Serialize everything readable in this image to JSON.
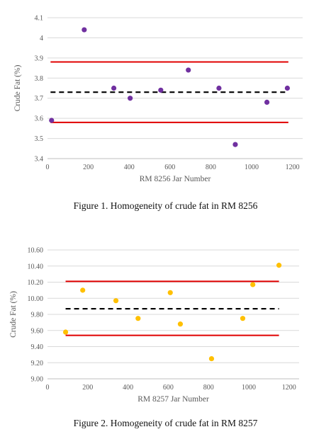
{
  "chart_data": [
    {
      "type": "scatter",
      "caption": "Figure 1. Homogeneity of crude fat in RM 8256",
      "xlabel": "RM 8256 Jar Number",
      "ylabel": "Crude Fat (%)",
      "xlim": [
        0,
        1250
      ],
      "ylim": [
        3.4,
        4.1
      ],
      "xticks": [
        0,
        200,
        400,
        600,
        800,
        1000,
        1200
      ],
      "xtick_labels": [
        "0",
        "200",
        "400",
        "600",
        "800",
        "1000",
        "1200"
      ],
      "yticks": [
        3.4,
        3.5,
        3.6,
        3.7,
        3.8,
        3.9,
        4.0,
        4.1
      ],
      "ytick_labels": [
        "3.4",
        "3.5",
        "3.6",
        "3.7",
        "3.8",
        "3.9",
        "4",
        "4.1"
      ],
      "grid": "horizontal",
      "point_color": "#7030a0",
      "series": [
        {
          "x": [
            20,
            180,
            325,
            405,
            555,
            690,
            840,
            920,
            1075,
            1175
          ],
          "y": [
            3.59,
            4.04,
            3.75,
            3.7,
            3.74,
            3.84,
            3.75,
            3.47,
            3.68,
            3.75
          ]
        }
      ],
      "reference_lines": [
        {
          "style": "solid",
          "color": "#e00000",
          "value": 3.88,
          "x_range": [
            15,
            1180
          ]
        },
        {
          "style": "dashed",
          "color": "#000000",
          "value": 3.73,
          "x_range": [
            15,
            1180
          ]
        },
        {
          "style": "solid",
          "color": "#e00000",
          "value": 3.58,
          "x_range": [
            15,
            1180
          ]
        }
      ]
    },
    {
      "type": "scatter",
      "caption": "Figure 2. Homogeneity of crude fat in RM 8257",
      "xlabel": "RM 8257 Jar Number",
      "ylabel": "Crude Fat (%)",
      "xlim": [
        0,
        1250
      ],
      "ylim": [
        9.0,
        10.6
      ],
      "xticks": [
        0,
        200,
        400,
        600,
        800,
        1000,
        1200
      ],
      "xtick_labels": [
        "0",
        "200",
        "400",
        "600",
        "800",
        "1000",
        "1200"
      ],
      "yticks": [
        9.0,
        9.2,
        9.4,
        9.6,
        9.8,
        10.0,
        10.2,
        10.4,
        10.6
      ],
      "ytick_labels": [
        "9.00",
        "9.20",
        "9.40",
        "9.60",
        "9.80",
        "10.00",
        "10.20",
        "10.40",
        "10.60"
      ],
      "grid": "horizontal",
      "point_color": "#ffc000",
      "series": [
        {
          "x": [
            90,
            175,
            340,
            450,
            610,
            660,
            815,
            970,
            1020,
            1150
          ],
          "y": [
            9.58,
            10.1,
            9.97,
            9.75,
            10.07,
            9.68,
            9.25,
            9.75,
            10.17,
            10.41
          ]
        }
      ],
      "reference_lines": [
        {
          "style": "solid",
          "color": "#e00000",
          "value": 10.21,
          "x_range": [
            90,
            1150
          ]
        },
        {
          "style": "dashed",
          "color": "#000000",
          "value": 9.87,
          "x_range": [
            90,
            1150
          ]
        },
        {
          "style": "solid",
          "color": "#e00000",
          "value": 9.54,
          "x_range": [
            90,
            1150
          ]
        }
      ]
    }
  ]
}
